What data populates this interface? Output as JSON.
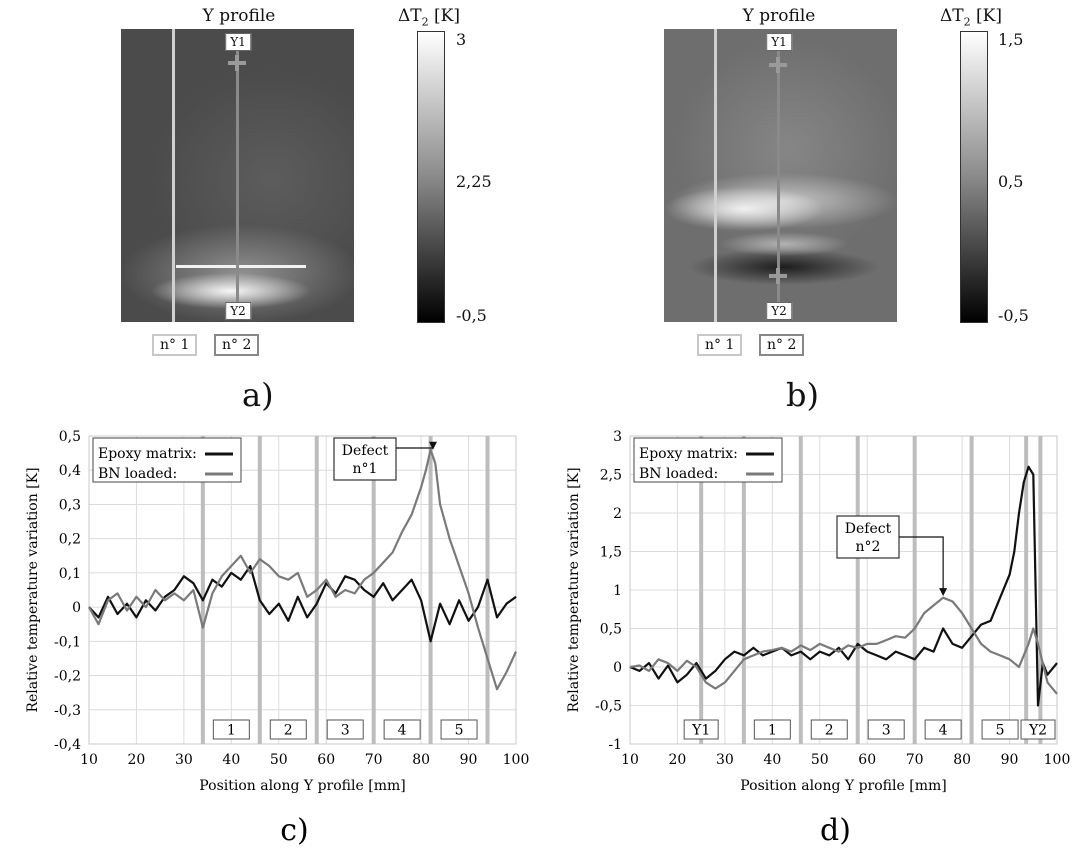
{
  "panels": [
    {
      "id": "a",
      "title": "Y profile",
      "colorbar": {
        "unit": "ΔT",
        "unit_sub": "2",
        "unit_suffix": " [K]",
        "ticks": [
          "3",
          "2,25",
          "-0,5"
        ]
      },
      "marker_top": "Y1",
      "marker_bottom": "Y2",
      "profile_labels": [
        "n° 1",
        "n° 2"
      ],
      "sublabel": "a)"
    },
    {
      "id": "b",
      "title": "Y profile",
      "colorbar": {
        "unit": "ΔT",
        "unit_sub": "2",
        "unit_suffix": " [K]",
        "ticks": [
          "1,5",
          "0,5",
          "-0,5"
        ]
      },
      "marker_top": "Y1",
      "marker_bottom": "Y2",
      "profile_labels": [
        "n° 1",
        "n° 2"
      ],
      "sublabel": "b)"
    }
  ],
  "chart_data": [
    {
      "type": "line",
      "sublabel": "c)",
      "xlabel": "Position along Y profile [mm]",
      "ylabel": "Relative temperature variation [K]",
      "xlim": [
        10,
        100
      ],
      "ylim": [
        -0.4,
        0.5
      ],
      "xticks": [
        10,
        20,
        30,
        40,
        50,
        60,
        70,
        80,
        90,
        100
      ],
      "yticks": [
        -0.4,
        -0.3,
        -0.2,
        -0.1,
        0,
        0.1,
        0.2,
        0.3,
        0.4,
        0.5
      ],
      "ytick_labels": [
        "-0,4",
        "-0,3",
        "-0,2",
        "-0,1",
        "0",
        "0,1",
        "0,2",
        "0,3",
        "0,4",
        "0,5"
      ],
      "grid": true,
      "legend": "top-left",
      "vlines": [
        34,
        46,
        58,
        70,
        82,
        94
      ],
      "zones": [
        {
          "label": "1",
          "x": 40
        },
        {
          "label": "2",
          "x": 52
        },
        {
          "label": "3",
          "x": 64
        },
        {
          "label": "4",
          "x": 76
        },
        {
          "label": "5",
          "x": 88
        }
      ],
      "annotation": {
        "lines": [
          "Defect",
          "n°1"
        ],
        "x": 82.5,
        "y": 0.46
      },
      "series": [
        {
          "name": "Epoxy matrix:",
          "color": "#111111",
          "x": [
            10,
            12,
            14,
            16,
            18,
            20,
            22,
            24,
            26,
            28,
            30,
            32,
            34,
            36,
            38,
            40,
            42,
            44,
            46,
            48,
            50,
            52,
            54,
            56,
            58,
            60,
            62,
            64,
            66,
            68,
            70,
            72,
            74,
            76,
            78,
            80,
            82,
            84,
            86,
            88,
            90,
            92,
            94,
            96,
            98,
            100
          ],
          "y": [
            0,
            -0.03,
            0.03,
            -0.02,
            0.01,
            -0.03,
            0.02,
            -0.01,
            0.03,
            0.05,
            0.09,
            0.07,
            0.02,
            0.08,
            0.06,
            0.1,
            0.08,
            0.12,
            0.02,
            -0.02,
            0.01,
            -0.04,
            0.03,
            -0.03,
            0.01,
            0.07,
            0.04,
            0.09,
            0.08,
            0.05,
            0.03,
            0.07,
            0.02,
            0.05,
            0.08,
            0.02,
            -0.1,
            0.01,
            -0.05,
            0.02,
            -0.04,
            0,
            0.08,
            -0.03,
            0.01,
            0.03
          ]
        },
        {
          "name": "BN loaded:",
          "color": "#7a7a7a",
          "x": [
            10,
            12,
            14,
            16,
            18,
            20,
            22,
            24,
            26,
            28,
            30,
            32,
            34,
            36,
            38,
            40,
            42,
            44,
            46,
            48,
            50,
            52,
            54,
            56,
            58,
            60,
            62,
            64,
            66,
            68,
            70,
            72,
            74,
            76,
            78,
            80,
            81,
            82,
            83,
            84,
            86,
            88,
            90,
            92,
            94,
            96,
            98,
            100
          ],
          "y": [
            0,
            -0.05,
            0.02,
            0.04,
            -0.01,
            0.03,
            0,
            0.05,
            0.02,
            0.04,
            0.02,
            0.05,
            -0.06,
            0.04,
            0.09,
            0.12,
            0.15,
            0.1,
            0.14,
            0.12,
            0.09,
            0.08,
            0.1,
            0.03,
            0.05,
            0.08,
            0.03,
            0.05,
            0.04,
            0.08,
            0.1,
            0.13,
            0.16,
            0.22,
            0.27,
            0.35,
            0.4,
            0.46,
            0.42,
            0.3,
            0.2,
            0.12,
            0.04,
            -0.06,
            -0.15,
            -0.24,
            -0.19,
            -0.13
          ]
        }
      ]
    },
    {
      "type": "line",
      "sublabel": "d)",
      "xlabel": "Position along Y profile [mm]",
      "ylabel": "Relative temperature variation [K]",
      "xlim": [
        10,
        100
      ],
      "ylim": [
        -1,
        3
      ],
      "xticks": [
        10,
        20,
        30,
        40,
        50,
        60,
        70,
        80,
        90,
        100
      ],
      "yticks": [
        -1,
        -0.5,
        0,
        0.5,
        1,
        1.5,
        2,
        2.5,
        3
      ],
      "ytick_labels": [
        "-1",
        "-0,5",
        "0",
        "0,5",
        "1",
        "1,5",
        "2",
        "2,5",
        "3"
      ],
      "grid": true,
      "legend": "top-left",
      "vlines": [
        25,
        34,
        46,
        58,
        70,
        82,
        93.5,
        96.5
      ],
      "zones": [
        {
          "label": "Y1",
          "x": 25
        },
        {
          "label": "1",
          "x": 40
        },
        {
          "label": "2",
          "x": 52
        },
        {
          "label": "3",
          "x": 64
        },
        {
          "label": "4",
          "x": 76
        },
        {
          "label": "5",
          "x": 88
        },
        {
          "label": "Y2",
          "x": 96
        }
      ],
      "annotation": {
        "lines": [
          "Defect",
          "n°2"
        ],
        "x": 76,
        "y": 0.92
      },
      "series": [
        {
          "name": "Epoxy matrix:",
          "color": "#111111",
          "x": [
            10,
            12,
            14,
            16,
            18,
            20,
            22,
            24,
            26,
            28,
            30,
            32,
            34,
            36,
            38,
            40,
            42,
            44,
            46,
            48,
            50,
            52,
            54,
            56,
            58,
            60,
            62,
            64,
            66,
            68,
            70,
            72,
            74,
            76,
            78,
            80,
            82,
            84,
            86,
            88,
            90,
            91,
            92,
            93,
            94,
            95,
            96,
            97,
            98,
            100
          ],
          "y": [
            0,
            -0.05,
            0.05,
            -0.15,
            0.02,
            -0.2,
            -0.1,
            0.05,
            -0.15,
            -0.05,
            0.1,
            0.2,
            0.15,
            0.25,
            0.15,
            0.2,
            0.25,
            0.15,
            0.2,
            0.1,
            0.2,
            0.15,
            0.25,
            0.1,
            0.3,
            0.2,
            0.15,
            0.1,
            0.2,
            0.15,
            0.1,
            0.25,
            0.2,
            0.5,
            0.3,
            0.25,
            0.4,
            0.55,
            0.6,
            0.9,
            1.2,
            1.5,
            2.0,
            2.4,
            2.6,
            2.5,
            -0.5,
            0.05,
            -0.1,
            0.05
          ]
        },
        {
          "name": "BN loaded:",
          "color": "#7a7a7a",
          "x": [
            10,
            12,
            14,
            16,
            18,
            20,
            22,
            24,
            26,
            28,
            30,
            32,
            34,
            36,
            38,
            40,
            42,
            44,
            46,
            48,
            50,
            52,
            54,
            56,
            58,
            60,
            62,
            64,
            66,
            68,
            70,
            72,
            74,
            76,
            78,
            80,
            82,
            84,
            86,
            88,
            90,
            92,
            94,
            95,
            96,
            98,
            100
          ],
          "y": [
            0,
            0.02,
            -0.05,
            0.1,
            0.05,
            -0.05,
            0.08,
            0,
            -0.2,
            -0.28,
            -0.2,
            -0.05,
            0.1,
            0.15,
            0.2,
            0.22,
            0.25,
            0.2,
            0.28,
            0.22,
            0.3,
            0.25,
            0.2,
            0.28,
            0.25,
            0.3,
            0.3,
            0.35,
            0.4,
            0.38,
            0.5,
            0.7,
            0.8,
            0.9,
            0.85,
            0.7,
            0.5,
            0.3,
            0.2,
            0.15,
            0.1,
            0,
            0.3,
            0.5,
            0.3,
            -0.2,
            -0.35
          ]
        }
      ]
    }
  ]
}
